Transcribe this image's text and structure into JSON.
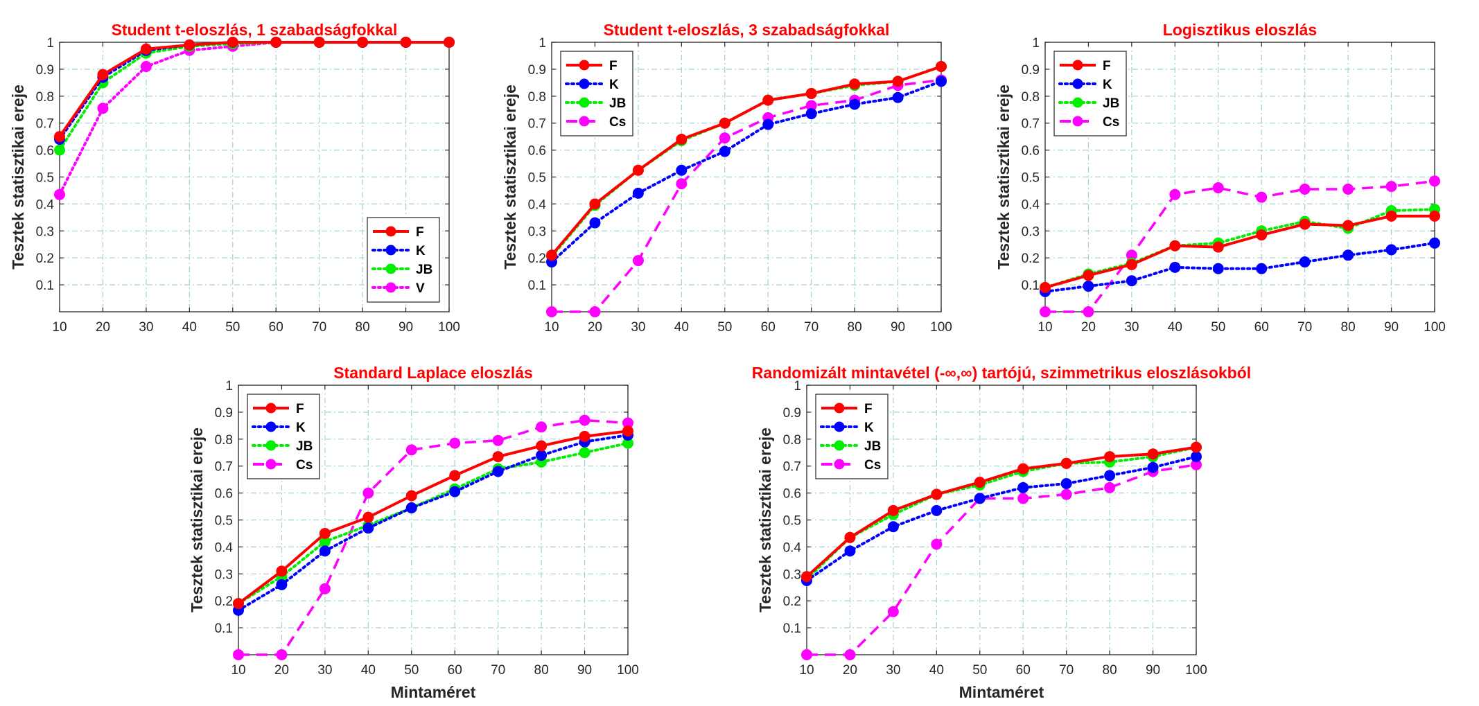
{
  "colors": {
    "F": "#ff0000",
    "K": "#0000ff",
    "JB": "#00ee00",
    "V": "#ff00ff",
    "Cs": "#ff00ff",
    "title": "#ff0000",
    "grid": "#9fd3d3"
  },
  "chart_data": [
    {
      "type": "line",
      "title": "Student t-eloszlás, 1 szabadságfokkal",
      "xlabel": "",
      "ylabel": "Tesztek statisztikai ereje",
      "x": [
        10,
        20,
        30,
        40,
        50,
        60,
        70,
        80,
        90,
        100
      ],
      "xticks": [
        "10",
        "20",
        "30",
        "40",
        "50",
        "60",
        "70",
        "80",
        "90",
        "100"
      ],
      "yticks": [
        "0.1",
        "0.2",
        "0.3",
        "0.4",
        "0.5",
        "0.6",
        "0.7",
        "0.8",
        "0.9",
        "1"
      ],
      "xlim": [
        10,
        100
      ],
      "ylim": [
        0,
        1
      ],
      "grid": true,
      "legend_position": "bottom-right",
      "series": [
        {
          "name": "F",
          "style": "solid",
          "values": [
            0.65,
            0.88,
            0.975,
            0.99,
            1.0,
            1.0,
            1.0,
            1.0,
            1.0,
            1.0
          ]
        },
        {
          "name": "K",
          "style": "dotted",
          "values": [
            0.64,
            0.87,
            0.97,
            0.99,
            1.0,
            1.0,
            1.0,
            1.0,
            1.0,
            1.0
          ]
        },
        {
          "name": "JB",
          "style": "dotted",
          "values": [
            0.6,
            0.85,
            0.96,
            0.985,
            0.995,
            1.0,
            1.0,
            1.0,
            1.0,
            1.0
          ]
        },
        {
          "name": "V",
          "style": "dotted",
          "values": [
            0.435,
            0.755,
            0.91,
            0.97,
            0.985,
            1.0,
            1.0,
            1.0,
            1.0,
            1.0
          ]
        }
      ]
    },
    {
      "type": "line",
      "title": "Student t-eloszlás, 3 szabadságfokkal",
      "xlabel": "",
      "ylabel": "Tesztek statisztikai ereje",
      "x": [
        10,
        20,
        30,
        40,
        50,
        60,
        70,
        80,
        90,
        100
      ],
      "xticks": [
        "10",
        "20",
        "30",
        "40",
        "50",
        "60",
        "70",
        "80",
        "90",
        "100"
      ],
      "yticks": [
        "0.1",
        "0.2",
        "0.3",
        "0.4",
        "0.5",
        "0.6",
        "0.7",
        "0.8",
        "0.9",
        "1"
      ],
      "xlim": [
        10,
        100
      ],
      "ylim": [
        0,
        1
      ],
      "grid": true,
      "legend_position": "top-left",
      "series": [
        {
          "name": "F",
          "style": "solid",
          "values": [
            0.21,
            0.4,
            0.525,
            0.64,
            0.7,
            0.785,
            0.81,
            0.845,
            0.855,
            0.91
          ]
        },
        {
          "name": "K",
          "style": "dotted",
          "values": [
            0.185,
            0.33,
            0.44,
            0.525,
            0.595,
            0.695,
            0.735,
            0.77,
            0.795,
            0.855
          ]
        },
        {
          "name": "JB",
          "style": "dotted",
          "values": [
            0.205,
            0.395,
            0.525,
            0.635,
            0.7,
            0.785,
            0.81,
            0.84,
            0.855,
            0.91
          ]
        },
        {
          "name": "Cs",
          "style": "dashed",
          "values": [
            0.0,
            0.0,
            0.19,
            0.475,
            0.645,
            0.72,
            0.765,
            0.785,
            0.84,
            0.86
          ]
        }
      ]
    },
    {
      "type": "line",
      "title": "Logisztikus eloszlás",
      "xlabel": "",
      "ylabel": "Tesztek statisztikai ereje",
      "x": [
        10,
        20,
        30,
        40,
        50,
        60,
        70,
        80,
        90,
        100
      ],
      "xticks": [
        "10",
        "20",
        "30",
        "40",
        "50",
        "60",
        "70",
        "80",
        "90",
        "100"
      ],
      "yticks": [
        "0.1",
        "0.2",
        "0.3",
        "0.4",
        "0.5",
        "0.6",
        "0.7",
        "0.8",
        "0.9",
        "1"
      ],
      "xlim": [
        10,
        100
      ],
      "ylim": [
        0,
        1
      ],
      "grid": true,
      "legend_position": "top-left",
      "series": [
        {
          "name": "F",
          "style": "solid",
          "values": [
            0.09,
            0.135,
            0.175,
            0.245,
            0.24,
            0.285,
            0.325,
            0.32,
            0.355,
            0.355
          ]
        },
        {
          "name": "K",
          "style": "dotted",
          "values": [
            0.075,
            0.095,
            0.115,
            0.165,
            0.16,
            0.16,
            0.185,
            0.21,
            0.23,
            0.255
          ]
        },
        {
          "name": "JB",
          "style": "dotted",
          "values": [
            0.09,
            0.14,
            0.18,
            0.245,
            0.255,
            0.3,
            0.335,
            0.31,
            0.375,
            0.38
          ]
        },
        {
          "name": "Cs",
          "style": "dashed",
          "values": [
            0.0,
            0.0,
            0.21,
            0.435,
            0.46,
            0.425,
            0.455,
            0.455,
            0.465,
            0.485
          ]
        }
      ]
    },
    {
      "type": "line",
      "title": "Standard Laplace eloszlás",
      "xlabel": "Mintaméret",
      "ylabel": "Tesztek statisztikai ereje",
      "x": [
        10,
        20,
        30,
        40,
        50,
        60,
        70,
        80,
        90,
        100
      ],
      "xticks": [
        "10",
        "20",
        "30",
        "40",
        "50",
        "60",
        "70",
        "80",
        "90",
        "100"
      ],
      "yticks": [
        "0.1",
        "0.2",
        "0.3",
        "0.4",
        "0.5",
        "0.6",
        "0.7",
        "0.8",
        "0.9",
        "1"
      ],
      "xlim": [
        10,
        100
      ],
      "ylim": [
        0,
        1
      ],
      "grid": true,
      "legend_position": "top-left",
      "series": [
        {
          "name": "F",
          "style": "solid",
          "values": [
            0.19,
            0.31,
            0.45,
            0.51,
            0.59,
            0.665,
            0.735,
            0.775,
            0.81,
            0.83
          ]
        },
        {
          "name": "K",
          "style": "dotted",
          "values": [
            0.165,
            0.26,
            0.385,
            0.47,
            0.545,
            0.605,
            0.68,
            0.74,
            0.79,
            0.815
          ]
        },
        {
          "name": "JB",
          "style": "dotted",
          "values": [
            0.19,
            0.29,
            0.42,
            0.48,
            0.545,
            0.615,
            0.69,
            0.715,
            0.75,
            0.785
          ]
        },
        {
          "name": "Cs",
          "style": "dashed",
          "values": [
            0.0,
            0.0,
            0.245,
            0.6,
            0.76,
            0.785,
            0.795,
            0.845,
            0.87,
            0.86
          ]
        }
      ]
    },
    {
      "type": "line",
      "title": "Randomizált mintavétel (-∞,∞) tartójú, szimmetrikus eloszlásokból",
      "xlabel": "Mintaméret",
      "ylabel": "Tesztek statisztikai ereje",
      "x": [
        10,
        20,
        30,
        40,
        50,
        60,
        70,
        80,
        90,
        100
      ],
      "xticks": [
        "10",
        "20",
        "30",
        "40",
        "50",
        "60",
        "70",
        "80",
        "90",
        "100"
      ],
      "yticks": [
        "0.1",
        "0.2",
        "0.3",
        "0.4",
        "0.5",
        "0.6",
        "0.7",
        "0.8",
        "0.9",
        "1"
      ],
      "xlim": [
        10,
        100
      ],
      "ylim": [
        0,
        1
      ],
      "grid": true,
      "legend_position": "top-left",
      "series": [
        {
          "name": "F",
          "style": "solid",
          "values": [
            0.29,
            0.435,
            0.535,
            0.595,
            0.64,
            0.69,
            0.71,
            0.735,
            0.745,
            0.77
          ]
        },
        {
          "name": "K",
          "style": "dotted",
          "values": [
            0.275,
            0.385,
            0.475,
            0.535,
            0.58,
            0.62,
            0.635,
            0.665,
            0.695,
            0.735
          ]
        },
        {
          "name": "JB",
          "style": "dotted",
          "values": [
            0.28,
            0.435,
            0.52,
            0.595,
            0.63,
            0.68,
            0.71,
            0.715,
            0.735,
            0.77
          ]
        },
        {
          "name": "Cs",
          "style": "dashed",
          "values": [
            0.0,
            0.0,
            0.16,
            0.41,
            0.58,
            0.58,
            0.595,
            0.62,
            0.68,
            0.705
          ]
        }
      ]
    }
  ]
}
